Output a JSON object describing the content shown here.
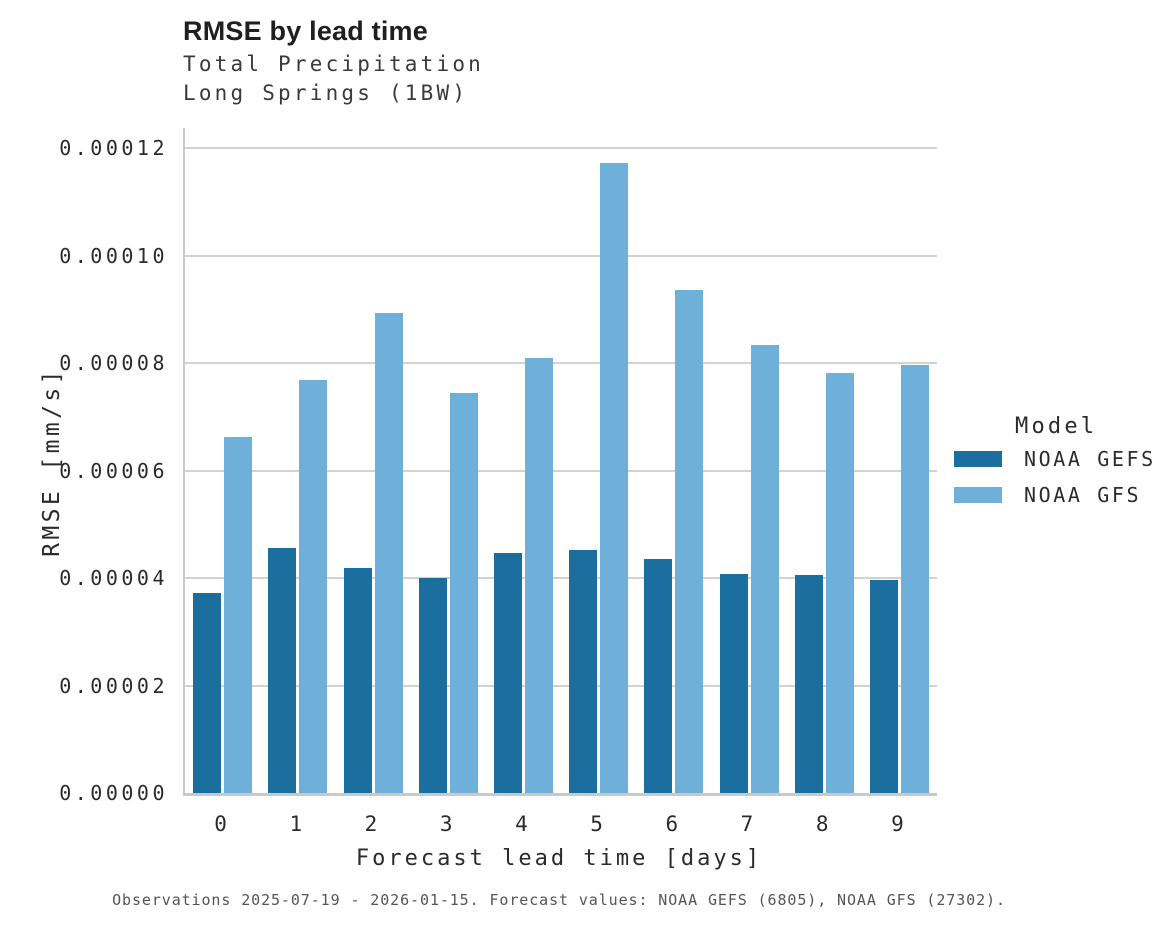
{
  "header": {
    "title": "RMSE by lead time",
    "subtitle_line1": "Total Precipitation",
    "subtitle_line2": "Long Springs (1BW)"
  },
  "legend": {
    "title": "Model",
    "entries": [
      {
        "label": "NOAA GEFS",
        "color": "#1A6F9E"
      },
      {
        "label": "NOAA GFS",
        "color": "#6FB0DA"
      }
    ]
  },
  "caption": "Observations 2025-07-19 - 2026-01-15. Forecast values: NOAA GEFS (6805), NOAA GFS (27302).",
  "colors": {
    "gefs_dark_blue": "#1A6F9E",
    "gfs_light_blue": "#6FB0DA",
    "gridline_gray": "#D2D2D2",
    "spine_gray": "#C9C9C9"
  },
  "chart_data": {
    "type": "bar",
    "title": "RMSE by lead time",
    "subtitle": [
      "Total Precipitation",
      "Long Springs (1BW)"
    ],
    "xlabel": "Forecast lead time [days]",
    "ylabel": "RMSE [mm/s]",
    "categories": [
      "0",
      "1",
      "2",
      "3",
      "4",
      "5",
      "6",
      "7",
      "8",
      "9"
    ],
    "series": [
      {
        "name": "NOAA GEFS",
        "color": "#1A6F9E",
        "values": [
          3.72e-05,
          4.55e-05,
          4.18e-05,
          4e-05,
          4.47e-05,
          4.53e-05,
          4.35e-05,
          4.08e-05,
          4.05e-05,
          3.96e-05
        ]
      },
      {
        "name": "NOAA GFS",
        "color": "#6FB0DA",
        "values": [
          6.62e-05,
          7.68e-05,
          8.93e-05,
          7.45e-05,
          8.09e-05,
          0.0001172,
          9.35e-05,
          8.33e-05,
          7.81e-05,
          7.97e-05
        ]
      }
    ],
    "ylim": [
      0,
      0.00012
    ],
    "yticks": [
      0,
      2e-05,
      4e-05,
      6e-05,
      8e-05,
      0.0001,
      0.00012
    ],
    "ytick_labels": [
      "0.00000",
      "0.00002",
      "0.00004",
      "0.00006",
      "0.00008",
      "0.00010",
      "0.00012"
    ],
    "grid": "horizontal",
    "legend_title": "Model",
    "legend_position": "right-outside"
  }
}
